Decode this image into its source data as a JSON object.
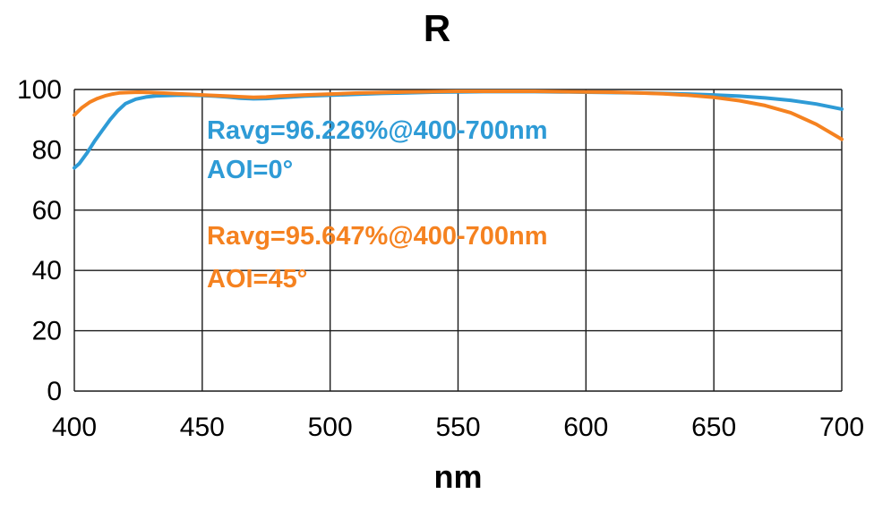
{
  "chart_data": {
    "type": "line",
    "title": "R",
    "xlabel": "nm",
    "ylabel": "",
    "xlim": [
      400,
      700
    ],
    "ylim": [
      0,
      100
    ],
    "x_ticks": [
      400,
      450,
      500,
      550,
      600,
      650,
      700
    ],
    "y_ticks": [
      0,
      20,
      40,
      60,
      80,
      100
    ],
    "grid": true,
    "legend_position": "none",
    "colors": {
      "aoi0": "#2E9BD6",
      "aoi45": "#F58220",
      "grid": "#1a1a1a",
      "text": "#000000"
    },
    "series": [
      {
        "name": "AOI=0°",
        "color": "#2E9BD6",
        "x": [
          400,
          402,
          405,
          408,
          411,
          414,
          417,
          420,
          424,
          428,
          432,
          436,
          440,
          445,
          450,
          455,
          460,
          465,
          470,
          475,
          480,
          490,
          500,
          510,
          520,
          530,
          540,
          550,
          560,
          570,
          580,
          590,
          600,
          610,
          620,
          630,
          640,
          650,
          660,
          670,
          680,
          690,
          700
        ],
        "y": [
          74,
          75.5,
          79,
          83,
          86.5,
          90,
          93,
          95.3,
          96.8,
          97.5,
          97.9,
          98.0,
          98.1,
          98.1,
          98.0,
          97.8,
          97.5,
          97.1,
          96.9,
          97.0,
          97.3,
          97.8,
          98.1,
          98.4,
          98.7,
          98.9,
          99.1,
          99.2,
          99.3,
          99.3,
          99.3,
          99.2,
          99.1,
          99.0,
          98.9,
          98.7,
          98.5,
          98.2,
          97.8,
          97.2,
          96.4,
          95.2,
          93.5
        ]
      },
      {
        "name": "AOI=45°",
        "color": "#F58220",
        "x": [
          400,
          403,
          406,
          409,
          412,
          415,
          418,
          421,
          425,
          430,
          435,
          440,
          445,
          450,
          455,
          460,
          465,
          470,
          475,
          480,
          490,
          500,
          510,
          520,
          530,
          540,
          550,
          560,
          570,
          580,
          590,
          600,
          610,
          620,
          630,
          640,
          650,
          660,
          670,
          680,
          690,
          700
        ],
        "y": [
          91.5,
          94,
          95.8,
          97,
          97.9,
          98.5,
          98.9,
          99.0,
          99.1,
          99.0,
          98.8,
          98.6,
          98.4,
          98.2,
          98.0,
          97.8,
          97.6,
          97.4,
          97.5,
          97.8,
          98.2,
          98.5,
          98.8,
          99.0,
          99.2,
          99.3,
          99.4,
          99.4,
          99.4,
          99.4,
          99.3,
          99.2,
          99.1,
          98.9,
          98.6,
          98.1,
          97.4,
          96.3,
          94.7,
          92.3,
          88.5,
          83.5
        ]
      }
    ],
    "annotations": [
      {
        "text": "Ravg=96.226%@400-700nm",
        "color": "#2E9BD6",
        "series": "AOI=0°"
      },
      {
        "text": "AOI=0°",
        "color": "#2E9BD6",
        "series": "AOI=0°"
      },
      {
        "text": "Ravg=95.647%@400-700nm",
        "color": "#F58220",
        "series": "AOI=45°"
      },
      {
        "text": "AOI=45°",
        "color": "#F58220",
        "series": "AOI=45°"
      }
    ]
  }
}
